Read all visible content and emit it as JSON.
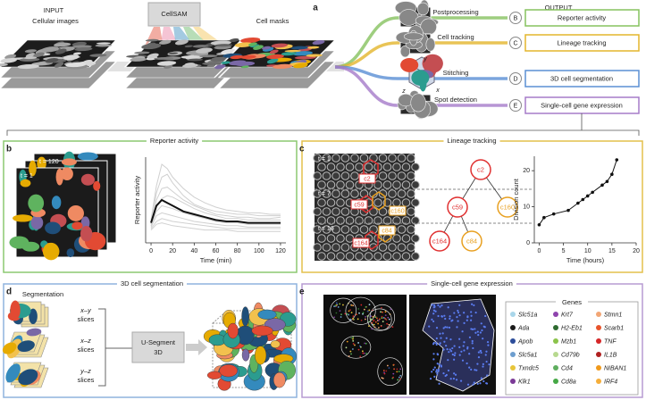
{
  "panel_a": {
    "label": "a",
    "input_heading": "INPUT",
    "input_label": "Cellular images",
    "model": "CellSAM",
    "masks_label": "Cell masks",
    "output_heading": "OUTPUT",
    "axes": [
      "z",
      "y",
      "x"
    ],
    "steps": [
      "Postprocessing",
      "Cell tracking",
      "Stitching",
      "Spot detection"
    ],
    "outputs": [
      {
        "letter": "B",
        "label": "Reporter activity",
        "color": "#86c25f"
      },
      {
        "letter": "C",
        "label": "Lineage tracking",
        "color": "#e4b52c"
      },
      {
        "letter": "D",
        "label": "3D cell segmentation",
        "color": "#5a8fd4"
      },
      {
        "letter": "E",
        "label": "Single-cell gene expression",
        "color": "#a57bc9"
      }
    ]
  },
  "panel_b": {
    "label": "b",
    "title": "Reporter activity",
    "frames": [
      "t = 120",
      "t = 1"
    ]
  },
  "panel_c": {
    "label": "c",
    "title": "Lineage tracking",
    "frames": [
      "t = 1",
      "t = 7",
      "t = 16"
    ],
    "cell_labels": [
      "c2",
      "c59",
      "c160",
      "c164",
      "c84"
    ],
    "tree": [
      "c2",
      "c59",
      "c160",
      "c164",
      "c84"
    ]
  },
  "panel_d": {
    "label": "d",
    "title": "3D cell segmentation",
    "heading": "Segmentation",
    "slices": [
      {
        "plane": "x–y",
        "word": "slices"
      },
      {
        "plane": "x–z",
        "word": "slices"
      },
      {
        "plane": "y–z",
        "word": "slices"
      }
    ],
    "model_lines": [
      "U-Segment",
      "3D"
    ]
  },
  "panel_e": {
    "label": "e",
    "title": "Single-cell gene expression",
    "legend_title": "Genes",
    "genes": [
      {
        "name": "Slc51a",
        "color": "#a9d6ea"
      },
      {
        "name": "Ada",
        "color": "#1a1a1a"
      },
      {
        "name": "Apob",
        "color": "#2c4d9a"
      },
      {
        "name": "Slc5a1",
        "color": "#6d9ecf"
      },
      {
        "name": "Txndc5",
        "color": "#e7c53a"
      },
      {
        "name": "Klk1",
        "color": "#7b3a96"
      },
      {
        "name": "Krt7",
        "color": "#8e44ad"
      },
      {
        "name": "H2-Eb1",
        "color": "#2e6b30"
      },
      {
        "name": "Mzb1",
        "color": "#8bc34a"
      },
      {
        "name": "Cd79b",
        "color": "#b7d98f"
      },
      {
        "name": "Cd4",
        "color": "#5fae5f"
      },
      {
        "name": "Cd8a",
        "color": "#45a845"
      },
      {
        "name": "Stmn1",
        "color": "#f2a675"
      },
      {
        "name": "Scarb1",
        "color": "#e8542c"
      },
      {
        "name": "TNF",
        "color": "#d62728"
      },
      {
        "name": "IL1B",
        "color": "#b02020"
      },
      {
        "name": "NIBAN1",
        "color": "#f09a1c"
      },
      {
        "name": "IRF4",
        "color": "#f5ae3a"
      }
    ]
  },
  "chart_data": [
    {
      "type": "line",
      "xlabel": "Time (min)",
      "ylabel": "Reporter activity",
      "x": [
        0,
        5,
        10,
        15,
        20,
        30,
        40,
        50,
        60,
        70,
        80,
        90,
        100,
        110,
        120
      ],
      "xlim": [
        -5,
        125
      ],
      "xticks": [
        0,
        20,
        40,
        60,
        80,
        100,
        120
      ],
      "ylim": [
        0,
        6
      ],
      "series": [
        {
          "color": "#d0d0d0",
          "values": [
            1.6,
            4.0,
            5.5,
            5.2,
            4.6,
            3.8,
            3.2,
            2.8,
            2.5,
            2.3,
            2.2,
            2.1,
            2.1,
            2.0,
            2.0
          ]
        },
        {
          "color": "#d0d0d0",
          "values": [
            1.5,
            3.5,
            4.6,
            4.8,
            4.2,
            3.3,
            2.7,
            2.4,
            2.2,
            2.1,
            2.0,
            2.0,
            1.9,
            1.9,
            1.9
          ]
        },
        {
          "color": "#d0d0d0",
          "values": [
            1.3,
            3.0,
            3.8,
            3.9,
            3.6,
            3.0,
            2.6,
            2.3,
            2.0,
            1.9,
            1.8,
            1.8,
            1.7,
            1.7,
            1.8
          ]
        },
        {
          "color": "#d0d0d0",
          "values": [
            1.4,
            2.6,
            3.1,
            3.3,
            3.2,
            2.8,
            2.4,
            2.1,
            1.9,
            1.7,
            1.7,
            1.6,
            1.6,
            1.6,
            1.6
          ]
        },
        {
          "color": "#d0d0d0",
          "values": [
            1.2,
            2.2,
            2.6,
            2.5,
            2.4,
            2.1,
            1.9,
            1.7,
            1.5,
            1.4,
            1.4,
            1.3,
            1.3,
            1.3,
            1.3
          ]
        },
        {
          "color": "#d0d0d0",
          "values": [
            1.1,
            1.9,
            2.1,
            2.0,
            1.9,
            1.7,
            1.5,
            1.4,
            1.3,
            1.2,
            1.2,
            1.1,
            1.1,
            1.1,
            1.1
          ]
        },
        {
          "color": "#d0d0d0",
          "values": [
            1.0,
            1.5,
            1.7,
            1.6,
            1.5,
            1.4,
            1.3,
            1.2,
            1.1,
            1.0,
            1.0,
            1.0,
            1.0,
            1.0,
            1.0
          ]
        },
        {
          "color": "#d0d0d0",
          "values": [
            0.9,
            1.3,
            1.4,
            1.3,
            1.2,
            1.1,
            1.0,
            0.9,
            0.9,
            0.9,
            0.8,
            0.8,
            0.8,
            0.8,
            0.8
          ]
        },
        {
          "color": "#111111",
          "width": 2,
          "values": [
            1.4,
            2.6,
            3.0,
            2.8,
            2.6,
            2.2,
            2.0,
            1.8,
            1.6,
            1.5,
            1.5,
            1.4,
            1.4,
            1.4,
            1.4
          ]
        }
      ]
    },
    {
      "type": "line",
      "markers": true,
      "xlabel": "Time (hours)",
      "ylabel": "Division count",
      "x": [
        0,
        1,
        3,
        6,
        8,
        9,
        10,
        11,
        13,
        14,
        15,
        16
      ],
      "xlim": [
        -1,
        20
      ],
      "xticks": [
        0,
        5,
        10,
        15,
        20
      ],
      "ylim": [
        0,
        24
      ],
      "yticks": [
        0,
        10,
        20
      ],
      "series": [
        {
          "color": "#111111",
          "values": [
            5,
            7,
            8,
            9,
            11,
            12,
            13,
            14,
            16,
            17,
            19,
            23
          ]
        }
      ]
    }
  ]
}
